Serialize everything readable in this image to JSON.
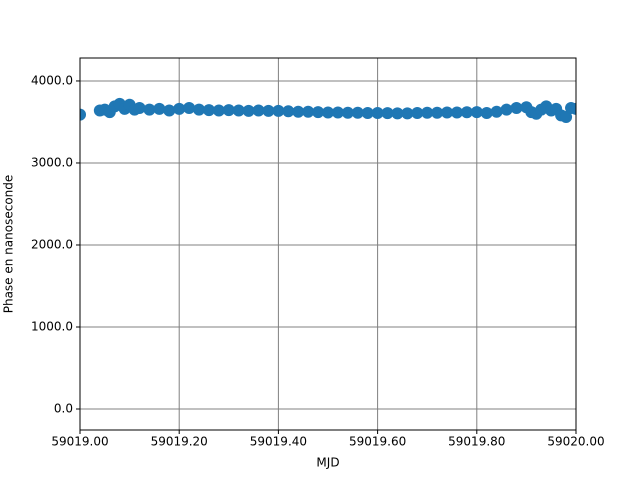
{
  "chart_data": {
    "type": "scatter",
    "xlabel": "MJD",
    "ylabel": "Phase en nanoseconde",
    "color": "#1f77b4",
    "grid": true,
    "xlim": [
      59019.0,
      59020.0
    ],
    "ylim": [
      -256,
      4280
    ],
    "xticks": [
      {
        "value": 59019.0,
        "label": "59019.00"
      },
      {
        "value": 59019.2,
        "label": "59019.20"
      },
      {
        "value": 59019.4,
        "label": "59019.40"
      },
      {
        "value": 59019.6,
        "label": "59019.60"
      },
      {
        "value": 59019.8,
        "label": "59019.80"
      },
      {
        "value": 59020.0,
        "label": "59020.00"
      }
    ],
    "yticks": [
      {
        "value": 0,
        "label": "0.0"
      },
      {
        "value": 1000,
        "label": "1000.0"
      },
      {
        "value": 2000,
        "label": "2000.0"
      },
      {
        "value": 3000,
        "label": "3000.0"
      },
      {
        "value": 4000,
        "label": "4000.0"
      }
    ],
    "x": [
      59019.0,
      59019.04,
      59019.05,
      59019.06,
      59019.07,
      59019.08,
      59019.09,
      59019.1,
      59019.11,
      59019.12,
      59019.14,
      59019.16,
      59019.18,
      59019.2,
      59019.22,
      59019.24,
      59019.26,
      59019.28,
      59019.3,
      59019.32,
      59019.34,
      59019.36,
      59019.38,
      59019.4,
      59019.42,
      59019.44,
      59019.46,
      59019.48,
      59019.5,
      59019.52,
      59019.54,
      59019.56,
      59019.58,
      59019.6,
      59019.62,
      59019.64,
      59019.66,
      59019.68,
      59019.7,
      59019.72,
      59019.74,
      59019.76,
      59019.78,
      59019.8,
      59019.82,
      59019.84,
      59019.86,
      59019.88,
      59019.9,
      59019.91,
      59019.92,
      59019.93,
      59019.94,
      59019.95,
      59019.96,
      59019.97,
      59019.98,
      59019.99,
      59020.0
    ],
    "values": [
      3590,
      3640,
      3650,
      3620,
      3690,
      3720,
      3660,
      3710,
      3650,
      3670,
      3650,
      3660,
      3640,
      3660,
      3670,
      3650,
      3645,
      3640,
      3645,
      3640,
      3635,
      3640,
      3635,
      3635,
      3630,
      3625,
      3625,
      3620,
      3615,
      3615,
      3612,
      3612,
      3610,
      3610,
      3608,
      3605,
      3605,
      3610,
      3612,
      3612,
      3615,
      3615,
      3618,
      3620,
      3610,
      3625,
      3650,
      3670,
      3680,
      3620,
      3600,
      3650,
      3690,
      3640,
      3660,
      3580,
      3560,
      3670,
      3660
    ]
  }
}
